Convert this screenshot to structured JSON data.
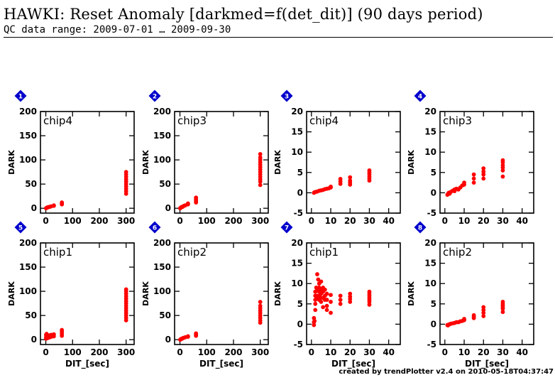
{
  "page": {
    "title": "HAWKI: Reset Anomaly [darkmed=f(det_dit)] (90 days period)",
    "subtitle": "QC data range: 2009-07-01 … 2009-09-30",
    "footer": "created by trendPlotter v2.4 on 2010-05-18T04:37:47"
  },
  "colors": {
    "marker": "#ff0000",
    "badge": "#0000cc",
    "axis": "#000000"
  },
  "chart_data": [
    {
      "type": "scatter",
      "panel": "1",
      "label": "chip4",
      "xlabel": "",
      "ylabel": "DARK",
      "xlim": [
        -20,
        330
      ],
      "ylim": [
        -10,
        200
      ],
      "xticks": [
        0,
        100,
        200,
        300
      ],
      "yticks": [
        0,
        50,
        100,
        150,
        200
      ],
      "points": [
        [
          1,
          0
        ],
        [
          2,
          0.5
        ],
        [
          3,
          1
        ],
        [
          5,
          1.5
        ],
        [
          8,
          2
        ],
        [
          10,
          2.5
        ],
        [
          15,
          3
        ],
        [
          20,
          4
        ],
        [
          30,
          5
        ],
        [
          30,
          6
        ],
        [
          60,
          8
        ],
        [
          60,
          10
        ],
        [
          60,
          12
        ],
        [
          300,
          30
        ],
        [
          300,
          35
        ],
        [
          300,
          40
        ],
        [
          300,
          45
        ],
        [
          300,
          50
        ],
        [
          300,
          55
        ],
        [
          300,
          60
        ],
        [
          300,
          65
        ],
        [
          300,
          70
        ],
        [
          300,
          75
        ]
      ]
    },
    {
      "type": "scatter",
      "panel": "2",
      "label": "chip3",
      "xlabel": "",
      "ylabel": "DARK",
      "xlim": [
        -20,
        330
      ],
      "ylim": [
        -10,
        200
      ],
      "xticks": [
        0,
        100,
        200,
        300
      ],
      "yticks": [
        0,
        50,
        100,
        150,
        200
      ],
      "points": [
        [
          1,
          0
        ],
        [
          2,
          1
        ],
        [
          3,
          1
        ],
        [
          5,
          2
        ],
        [
          8,
          3
        ],
        [
          10,
          3
        ],
        [
          15,
          5
        ],
        [
          20,
          6
        ],
        [
          30,
          8
        ],
        [
          30,
          10
        ],
        [
          60,
          12
        ],
        [
          60,
          15
        ],
        [
          60,
          18
        ],
        [
          60,
          22
        ],
        [
          300,
          48
        ],
        [
          300,
          55
        ],
        [
          300,
          60
        ],
        [
          300,
          65
        ],
        [
          300,
          70
        ],
        [
          300,
          75
        ],
        [
          300,
          80
        ],
        [
          300,
          85
        ],
        [
          300,
          90
        ],
        [
          300,
          95
        ],
        [
          300,
          100
        ],
        [
          300,
          105
        ],
        [
          300,
          112
        ]
      ]
    },
    {
      "type": "scatter",
      "panel": "3",
      "label": "chip4",
      "xlabel": "",
      "ylabel": "DARK",
      "xlim": [
        -2.5,
        46
      ],
      "ylim": [
        -5,
        20
      ],
      "xticks": [
        0,
        10,
        20,
        30,
        40
      ],
      "yticks": [
        -5,
        0,
        5,
        10,
        15,
        20
      ],
      "points": [
        [
          1.3,
          0
        ],
        [
          1.6,
          0.1
        ],
        [
          2,
          0.2
        ],
        [
          3,
          0.3
        ],
        [
          4,
          0.5
        ],
        [
          5,
          0.6
        ],
        [
          6,
          0.7
        ],
        [
          7,
          0.9
        ],
        [
          8,
          1.0
        ],
        [
          9,
          1.1
        ],
        [
          10,
          1.3
        ],
        [
          10,
          1.5
        ],
        [
          15,
          2.2
        ],
        [
          15,
          2.8
        ],
        [
          15,
          3.4
        ],
        [
          20,
          2.0
        ],
        [
          20,
          2.5
        ],
        [
          20,
          3.0
        ],
        [
          20,
          3.8
        ],
        [
          30,
          3.0
        ],
        [
          30,
          3.5
        ],
        [
          30,
          4.0
        ],
        [
          30,
          4.5
        ],
        [
          30,
          5.0
        ],
        [
          30,
          5.5
        ]
      ]
    },
    {
      "type": "scatter",
      "panel": "4",
      "label": "chip3",
      "xlabel": "",
      "ylabel": "DARK",
      "xlim": [
        -2.5,
        46
      ],
      "ylim": [
        -5,
        20
      ],
      "xticks": [
        0,
        10,
        20,
        30,
        40
      ],
      "yticks": [
        -5,
        0,
        5,
        10,
        15,
        20
      ],
      "points": [
        [
          1.3,
          -0.5
        ],
        [
          1.6,
          -0.3
        ],
        [
          2,
          0
        ],
        [
          2.5,
          -0.2
        ],
        [
          3,
          0.2
        ],
        [
          4,
          0.5
        ],
        [
          5,
          0.4
        ],
        [
          5,
          0.8
        ],
        [
          6,
          1.0
        ],
        [
          7,
          0.8
        ],
        [
          8,
          1.3
        ],
        [
          9,
          1.8
        ],
        [
          10,
          2.0
        ],
        [
          10,
          2.5
        ],
        [
          15,
          2.5
        ],
        [
          15,
          3.5
        ],
        [
          15,
          4.5
        ],
        [
          20,
          3.5
        ],
        [
          20,
          4.5
        ],
        [
          20,
          5.2
        ],
        [
          20,
          6.0
        ],
        [
          30,
          4.0
        ],
        [
          30,
          5.5
        ],
        [
          30,
          6.2
        ],
        [
          30,
          6.8
        ],
        [
          30,
          7.5
        ],
        [
          30,
          8.0
        ]
      ]
    },
    {
      "type": "scatter",
      "panel": "5",
      "label": "chip1",
      "xlabel": "DIT_[sec]",
      "ylabel": "DARK",
      "xlim": [
        -20,
        330
      ],
      "ylim": [
        -10,
        200
      ],
      "xticks": [
        0,
        100,
        200,
        300
      ],
      "yticks": [
        0,
        50,
        100,
        150,
        200
      ],
      "points": [
        [
          1,
          2
        ],
        [
          1,
          5
        ],
        [
          1,
          10
        ],
        [
          2,
          4
        ],
        [
          2,
          8
        ],
        [
          3,
          6
        ],
        [
          3,
          12
        ],
        [
          5,
          3
        ],
        [
          5,
          9
        ],
        [
          8,
          5
        ],
        [
          8,
          8
        ],
        [
          10,
          4
        ],
        [
          10,
          7
        ],
        [
          15,
          5
        ],
        [
          15,
          9
        ],
        [
          20,
          6
        ],
        [
          20,
          10
        ],
        [
          30,
          7
        ],
        [
          30,
          11
        ],
        [
          60,
          8
        ],
        [
          60,
          12
        ],
        [
          60,
          16
        ],
        [
          60,
          20
        ],
        [
          300,
          40
        ],
        [
          300,
          45
        ],
        [
          300,
          50
        ],
        [
          300,
          55
        ],
        [
          300,
          60
        ],
        [
          300,
          65
        ],
        [
          300,
          70
        ],
        [
          300,
          75
        ],
        [
          300,
          80
        ],
        [
          300,
          85
        ],
        [
          300,
          90
        ],
        [
          300,
          95
        ],
        [
          300,
          100
        ],
        [
          300,
          104
        ]
      ]
    },
    {
      "type": "scatter",
      "panel": "6",
      "label": "chip2",
      "xlabel": "DIT_[sec]",
      "ylabel": "DARK",
      "xlim": [
        -20,
        330
      ],
      "ylim": [
        -10,
        200
      ],
      "xticks": [
        0,
        100,
        200,
        300
      ],
      "yticks": [
        0,
        50,
        100,
        150,
        200
      ],
      "points": [
        [
          1,
          0
        ],
        [
          2,
          0.5
        ],
        [
          3,
          1
        ],
        [
          5,
          1.5
        ],
        [
          8,
          2
        ],
        [
          10,
          3
        ],
        [
          15,
          4
        ],
        [
          20,
          5
        ],
        [
          30,
          6
        ],
        [
          30,
          7
        ],
        [
          60,
          8
        ],
        [
          60,
          10
        ],
        [
          60,
          13
        ],
        [
          300,
          35
        ],
        [
          300,
          40
        ],
        [
          300,
          45
        ],
        [
          300,
          50
        ],
        [
          300,
          55
        ],
        [
          300,
          60
        ],
        [
          300,
          65
        ],
        [
          300,
          70
        ],
        [
          300,
          78
        ]
      ]
    },
    {
      "type": "scatter",
      "panel": "7",
      "label": "chip1",
      "xlabel": "DIT_[sec]",
      "ylabel": "DARK",
      "xlim": [
        -2.5,
        46
      ],
      "ylim": [
        -5,
        20
      ],
      "xticks": [
        0,
        10,
        20,
        30,
        40
      ],
      "yticks": [
        -5,
        0,
        5,
        10,
        15,
        20
      ],
      "points": [
        [
          1.3,
          -0.2
        ],
        [
          1.3,
          0.5
        ],
        [
          1.3,
          1.5
        ],
        [
          1.6,
          0.8
        ],
        [
          2,
          3.5
        ],
        [
          2,
          5
        ],
        [
          2,
          6
        ],
        [
          2,
          7
        ],
        [
          2,
          8
        ],
        [
          2.5,
          9
        ],
        [
          3,
          12.3
        ],
        [
          3,
          6.5
        ],
        [
          3,
          7
        ],
        [
          3,
          8.5
        ],
        [
          3.5,
          11
        ],
        [
          4,
          6
        ],
        [
          4,
          7
        ],
        [
          4,
          8
        ],
        [
          4,
          9
        ],
        [
          4,
          10
        ],
        [
          5,
          5.5
        ],
        [
          5,
          6.5
        ],
        [
          5,
          7.5
        ],
        [
          5,
          8.5
        ],
        [
          5,
          10.5
        ],
        [
          6,
          4.2
        ],
        [
          6,
          6.5
        ],
        [
          6,
          8
        ],
        [
          6,
          9
        ],
        [
          7,
          6
        ],
        [
          7,
          7
        ],
        [
          7,
          8.5
        ],
        [
          8,
          3.5
        ],
        [
          8,
          4.5
        ],
        [
          8,
          6
        ],
        [
          8,
          7.5
        ],
        [
          10,
          2.8
        ],
        [
          10,
          5.5
        ],
        [
          10,
          7.2
        ],
        [
          15,
          5
        ],
        [
          15,
          6
        ],
        [
          15,
          7
        ],
        [
          20,
          5.5
        ],
        [
          20,
          6.2
        ],
        [
          20,
          6.8
        ],
        [
          20,
          7.5
        ],
        [
          30,
          4.8
        ],
        [
          30,
          5.5
        ],
        [
          30,
          6
        ],
        [
          30,
          6.5
        ],
        [
          30,
          7
        ],
        [
          30,
          7.5
        ],
        [
          30,
          8
        ]
      ]
    },
    {
      "type": "scatter",
      "panel": "8",
      "label": "chip2",
      "xlabel": "DIT_[sec]",
      "ylabel": "DARK",
      "xlim": [
        -2.5,
        46
      ],
      "ylim": [
        -5,
        20
      ],
      "xticks": [
        0,
        10,
        20,
        30,
        40
      ],
      "yticks": [
        -5,
        0,
        5,
        10,
        15,
        20
      ],
      "points": [
        [
          1.3,
          -0.2
        ],
        [
          1.6,
          -0.3
        ],
        [
          2,
          -0.1
        ],
        [
          2.5,
          0
        ],
        [
          3,
          0.1
        ],
        [
          4,
          0.2
        ],
        [
          5,
          0.3
        ],
        [
          6,
          0.5
        ],
        [
          7,
          0.5
        ],
        [
          8,
          0.7
        ],
        [
          9,
          0.8
        ],
        [
          10,
          1.0
        ],
        [
          10,
          1.3
        ],
        [
          15,
          1.5
        ],
        [
          15,
          1.8
        ],
        [
          15,
          2.2
        ],
        [
          20,
          2.0
        ],
        [
          20,
          2.8
        ],
        [
          20,
          3.5
        ],
        [
          20,
          4.2
        ],
        [
          30,
          3.0
        ],
        [
          30,
          3.8
        ],
        [
          30,
          4.2
        ],
        [
          30,
          4.6
        ],
        [
          30,
          5.0
        ],
        [
          30,
          5.5
        ]
      ]
    }
  ]
}
